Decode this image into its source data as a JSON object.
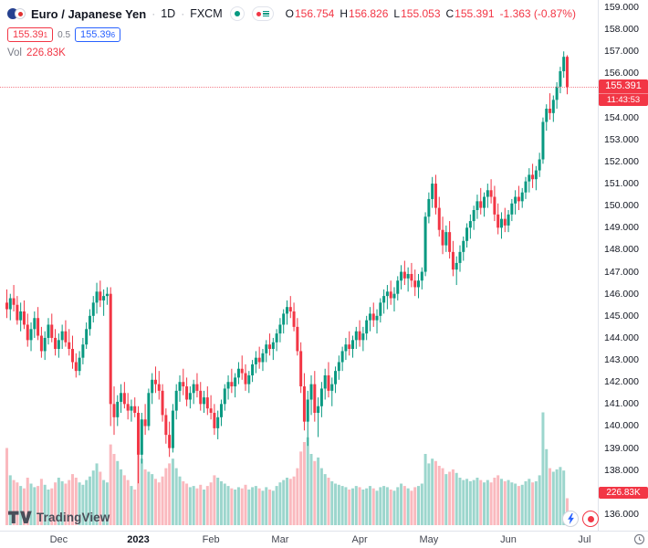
{
  "header": {
    "symbol_title": "Euro / Japanese Yen",
    "separator": "·",
    "interval": "1D",
    "exchange": "FXCM",
    "ohlc": {
      "o_label": "O",
      "o_value": "156.754",
      "h_label": "H",
      "h_value": "156.826",
      "l_label": "L",
      "l_value": "155.053",
      "c_label": "C",
      "c_value": "155.391",
      "change": "-1.363 (-0.87%)"
    },
    "sell": {
      "price": "155.39",
      "sup": "1"
    },
    "spread": "0.5",
    "buy": {
      "price": "155.39",
      "sup": "6"
    },
    "vol_label": "Vol",
    "vol_value": "226.83K"
  },
  "price_axis": {
    "labels": [
      "159.000",
      "158.000",
      "157.000",
      "156.000",
      "155.000",
      "154.000",
      "153.000",
      "152.000",
      "151.000",
      "150.000",
      "149.000",
      "148.000",
      "147.000",
      "146.000",
      "145.000",
      "144.000",
      "143.000",
      "142.000",
      "141.000",
      "140.000",
      "139.000",
      "138.000",
      "137.000",
      "136.000"
    ],
    "current_price_label": "155.391",
    "countdown": "11:43:53",
    "volume_label": "226.83K"
  },
  "time_axis": {
    "ticks": [
      {
        "label": "Dec",
        "index": 15
      },
      {
        "label": "2023",
        "index": 38
      },
      {
        "label": "Feb",
        "index": 59
      },
      {
        "label": "Mar",
        "index": 79
      },
      {
        "label": "Apr",
        "index": 102
      },
      {
        "label": "May",
        "index": 122
      },
      {
        "label": "Jun",
        "index": 145
      },
      {
        "label": "Jul",
        "index": 167
      }
    ]
  },
  "footer": {
    "logo_text": "TradingView"
  },
  "chart_data": {
    "type": "candlestick",
    "title": "Euro / Japanese Yen",
    "exchange": "FXCM",
    "interval": "1D",
    "legend_note": "values are [open, high, low, close, volume_thousands], daily bars from mid-Nov 2022 to late Jun 2023",
    "y_axis": {
      "min": 136,
      "max": 159,
      "step": 1
    },
    "current": {
      "open": 156.754,
      "high": 156.826,
      "low": 155.053,
      "close": 155.391,
      "change": -1.363,
      "change_pct": -0.87,
      "volume_k": 226.83,
      "countdown": "11:43:53"
    },
    "colors": {
      "up": "#089981",
      "down": "#f23645",
      "vol_up": "rgba(8,153,129,0.4)",
      "vol_down": "rgba(242,54,69,0.35)",
      "buy": "#2962ff",
      "marker_bg": "#f23645"
    },
    "candles": [
      [
        145.6,
        146.2,
        144.9,
        145.3,
        650
      ],
      [
        145.3,
        146.0,
        144.8,
        145.8,
        420
      ],
      [
        145.8,
        146.4,
        145.2,
        145.5,
        380
      ],
      [
        145.5,
        145.9,
        144.6,
        144.8,
        360
      ],
      [
        144.8,
        145.6,
        144.3,
        145.2,
        330
      ],
      [
        145.2,
        145.7,
        144.4,
        144.6,
        310
      ],
      [
        144.6,
        145.1,
        143.6,
        143.9,
        400
      ],
      [
        143.9,
        144.7,
        143.4,
        144.4,
        350
      ],
      [
        144.4,
        145.2,
        144.0,
        144.9,
        320
      ],
      [
        144.9,
        145.4,
        143.9,
        144.1,
        330
      ],
      [
        144.1,
        144.5,
        143.1,
        143.4,
        390
      ],
      [
        143.4,
        144.3,
        143.0,
        144.0,
        340
      ],
      [
        144.0,
        144.9,
        143.7,
        144.6,
        300
      ],
      [
        144.6,
        145.1,
        143.8,
        144.0,
        310
      ],
      [
        144.0,
        144.4,
        143.2,
        143.5,
        360
      ],
      [
        143.5,
        144.2,
        143.1,
        143.9,
        400
      ],
      [
        143.9,
        144.6,
        143.5,
        144.3,
        370
      ],
      [
        144.3,
        144.8,
        143.6,
        143.8,
        350
      ],
      [
        143.8,
        144.4,
        143.2,
        143.5,
        380
      ],
      [
        143.5,
        144.1,
        142.6,
        142.9,
        430
      ],
      [
        142.9,
        143.3,
        142.2,
        142.5,
        400
      ],
      [
        142.5,
        143.4,
        142.3,
        143.1,
        360
      ],
      [
        143.1,
        144.0,
        142.8,
        143.7,
        340
      ],
      [
        143.7,
        144.7,
        143.5,
        144.4,
        380
      ],
      [
        144.4,
        145.3,
        144.1,
        145.0,
        410
      ],
      [
        145.0,
        145.9,
        144.7,
        145.6,
        460
      ],
      [
        145.6,
        146.5,
        145.1,
        146.1,
        520
      ],
      [
        146.1,
        146.6,
        145.4,
        145.7,
        450
      ],
      [
        145.7,
        146.2,
        145.0,
        145.9,
        380
      ],
      [
        145.9,
        146.3,
        145.5,
        146.0,
        360
      ],
      [
        146.0,
        146.3,
        140.0,
        141.0,
        680
      ],
      [
        141.0,
        141.8,
        139.6,
        140.4,
        600
      ],
      [
        140.4,
        141.4,
        140.0,
        141.1,
        540
      ],
      [
        141.1,
        141.9,
        140.6,
        141.5,
        470
      ],
      [
        141.5,
        142.0,
        140.8,
        141.0,
        420
      ],
      [
        141.0,
        141.5,
        140.3,
        140.7,
        380
      ],
      [
        140.7,
        141.2,
        140.2,
        140.9,
        330
      ],
      [
        140.9,
        141.3,
        140.4,
        140.6,
        300
      ],
      [
        140.6,
        140.9,
        137.4,
        138.7,
        700
      ],
      [
        138.7,
        140.6,
        138.3,
        140.3,
        560
      ],
      [
        140.3,
        141.0,
        139.6,
        140.0,
        470
      ],
      [
        140.0,
        141.7,
        139.8,
        141.5,
        450
      ],
      [
        141.5,
        142.4,
        141.0,
        142.1,
        430
      ],
      [
        142.1,
        142.7,
        141.5,
        141.9,
        390
      ],
      [
        141.9,
        142.5,
        141.2,
        141.6,
        360
      ],
      [
        141.6,
        141.9,
        140.2,
        140.5,
        410
      ],
      [
        140.5,
        140.8,
        139.2,
        139.6,
        480
      ],
      [
        139.6,
        140.2,
        138.6,
        139.0,
        520
      ],
      [
        139.0,
        141.0,
        138.8,
        140.7,
        560
      ],
      [
        140.7,
        141.9,
        140.3,
        141.6,
        480
      ],
      [
        141.6,
        142.3,
        141.1,
        142.0,
        410
      ],
      [
        142.0,
        142.6,
        141.4,
        141.8,
        370
      ],
      [
        141.8,
        142.2,
        140.9,
        141.2,
        350
      ],
      [
        141.2,
        141.8,
        140.8,
        141.5,
        320
      ],
      [
        141.5,
        142.1,
        141.0,
        141.9,
        330
      ],
      [
        141.9,
        142.4,
        141.3,
        141.6,
        310
      ],
      [
        141.6,
        142.0,
        140.7,
        141.0,
        340
      ],
      [
        141.0,
        141.6,
        140.6,
        141.3,
        300
      ],
      [
        141.3,
        141.8,
        140.5,
        140.8,
        330
      ],
      [
        140.8,
        141.4,
        140.3,
        140.6,
        360
      ],
      [
        140.6,
        141.0,
        139.6,
        139.9,
        420
      ],
      [
        139.9,
        140.7,
        139.4,
        140.4,
        400
      ],
      [
        140.4,
        141.2,
        140.0,
        141.0,
        370
      ],
      [
        141.0,
        141.9,
        140.7,
        141.7,
        350
      ],
      [
        141.7,
        142.3,
        141.2,
        142.0,
        330
      ],
      [
        142.0,
        142.6,
        141.5,
        141.8,
        310
      ],
      [
        141.8,
        142.4,
        141.3,
        142.2,
        300
      ],
      [
        142.2,
        142.9,
        141.9,
        142.6,
        320
      ],
      [
        142.6,
        143.2,
        142.1,
        142.4,
        310
      ],
      [
        142.4,
        142.8,
        141.6,
        141.9,
        340
      ],
      [
        141.9,
        142.5,
        141.5,
        142.3,
        300
      ],
      [
        142.3,
        143.0,
        142.0,
        142.8,
        320
      ],
      [
        142.8,
        143.4,
        142.4,
        143.1,
        330
      ],
      [
        143.1,
        143.6,
        142.6,
        142.9,
        310
      ],
      [
        142.9,
        143.5,
        142.5,
        143.3,
        290
      ],
      [
        143.3,
        143.9,
        142.9,
        143.7,
        320
      ],
      [
        143.7,
        144.2,
        143.2,
        143.5,
        300
      ],
      [
        143.5,
        144.0,
        143.0,
        143.8,
        290
      ],
      [
        143.8,
        144.4,
        143.4,
        144.2,
        330
      ],
      [
        144.2,
        144.9,
        143.8,
        144.6,
        360
      ],
      [
        144.6,
        145.3,
        144.2,
        145.1,
        380
      ],
      [
        145.1,
        145.7,
        144.6,
        145.4,
        400
      ],
      [
        145.4,
        145.9,
        144.9,
        145.2,
        390
      ],
      [
        145.2,
        145.6,
        144.3,
        144.5,
        410
      ],
      [
        144.5,
        144.9,
        143.2,
        143.4,
        480
      ],
      [
        143.4,
        143.8,
        141.5,
        141.8,
        620
      ],
      [
        141.8,
        142.4,
        139.8,
        140.2,
        700
      ],
      [
        140.2,
        141.6,
        139.1,
        141.2,
        740
      ],
      [
        141.2,
        142.3,
        140.5,
        141.9,
        600
      ],
      [
        141.9,
        142.5,
        140.2,
        140.6,
        540
      ],
      [
        140.6,
        141.3,
        139.5,
        140.9,
        570
      ],
      [
        140.9,
        142.0,
        140.4,
        141.7,
        480
      ],
      [
        141.7,
        142.6,
        141.2,
        142.3,
        430
      ],
      [
        142.3,
        142.9,
        141.3,
        141.6,
        400
      ],
      [
        141.6,
        142.2,
        140.9,
        141.9,
        370
      ],
      [
        141.9,
        142.7,
        141.5,
        142.5,
        350
      ],
      [
        142.5,
        143.2,
        142.1,
        142.9,
        340
      ],
      [
        142.9,
        143.6,
        142.5,
        143.4,
        330
      ],
      [
        143.4,
        144.0,
        143.0,
        143.7,
        320
      ],
      [
        143.7,
        144.3,
        143.2,
        143.5,
        300
      ],
      [
        143.5,
        144.1,
        143.1,
        143.9,
        310
      ],
      [
        143.9,
        144.5,
        143.5,
        144.3,
        330
      ],
      [
        144.3,
        144.8,
        143.6,
        143.9,
        320
      ],
      [
        143.9,
        144.5,
        143.4,
        144.2,
        300
      ],
      [
        144.2,
        145.0,
        143.9,
        144.8,
        310
      ],
      [
        144.8,
        145.4,
        144.3,
        145.1,
        330
      ],
      [
        145.1,
        145.6,
        144.5,
        144.8,
        310
      ],
      [
        144.8,
        145.3,
        144.2,
        145.0,
        290
      ],
      [
        145.0,
        145.8,
        144.7,
        145.6,
        320
      ],
      [
        145.6,
        146.2,
        145.1,
        145.9,
        330
      ],
      [
        145.9,
        146.4,
        145.3,
        146.1,
        320
      ],
      [
        146.1,
        146.6,
        145.5,
        145.8,
        300
      ],
      [
        145.8,
        146.3,
        145.2,
        146.0,
        290
      ],
      [
        146.0,
        146.8,
        145.7,
        146.6,
        320
      ],
      [
        146.6,
        147.3,
        146.2,
        147.0,
        350
      ],
      [
        147.0,
        147.5,
        146.4,
        146.7,
        330
      ],
      [
        146.7,
        147.2,
        146.1,
        146.9,
        310
      ],
      [
        146.9,
        147.4,
        146.3,
        146.6,
        290
      ],
      [
        146.6,
        147.1,
        145.9,
        146.3,
        320
      ],
      [
        146.3,
        146.9,
        145.8,
        146.6,
        330
      ],
      [
        146.6,
        147.2,
        146.2,
        147.0,
        350
      ],
      [
        147.0,
        149.7,
        146.8,
        149.5,
        600
      ],
      [
        149.5,
        150.6,
        149.2,
        150.3,
        520
      ],
      [
        150.3,
        151.3,
        149.9,
        151.0,
        560
      ],
      [
        151.0,
        151.4,
        149.6,
        149.9,
        540
      ],
      [
        149.9,
        150.4,
        148.6,
        148.9,
        500
      ],
      [
        148.9,
        149.5,
        147.8,
        148.2,
        480
      ],
      [
        148.2,
        149.1,
        147.9,
        148.8,
        430
      ],
      [
        148.8,
        149.3,
        147.6,
        147.9,
        450
      ],
      [
        147.9,
        148.4,
        146.8,
        147.1,
        470
      ],
      [
        147.1,
        147.7,
        146.4,
        147.4,
        440
      ],
      [
        147.4,
        148.2,
        147.0,
        147.9,
        400
      ],
      [
        147.9,
        148.6,
        147.5,
        148.4,
        380
      ],
      [
        148.4,
        149.2,
        148.1,
        149.0,
        390
      ],
      [
        149.0,
        149.6,
        148.5,
        149.3,
        370
      ],
      [
        149.3,
        150.0,
        148.9,
        149.8,
        380
      ],
      [
        149.8,
        150.5,
        149.4,
        150.2,
        400
      ],
      [
        150.2,
        150.8,
        149.6,
        149.9,
        380
      ],
      [
        149.9,
        150.6,
        149.5,
        150.4,
        360
      ],
      [
        150.4,
        151.0,
        149.9,
        150.7,
        380
      ],
      [
        150.7,
        151.2,
        150.1,
        150.4,
        360
      ],
      [
        150.4,
        150.9,
        149.3,
        149.6,
        400
      ],
      [
        149.6,
        150.1,
        148.7,
        149.0,
        420
      ],
      [
        149.0,
        149.7,
        148.5,
        149.4,
        390
      ],
      [
        149.4,
        149.9,
        148.8,
        149.1,
        370
      ],
      [
        149.1,
        149.8,
        148.8,
        149.6,
        380
      ],
      [
        149.6,
        150.3,
        149.3,
        150.1,
        360
      ],
      [
        150.1,
        150.7,
        149.6,
        150.4,
        350
      ],
      [
        150.4,
        150.9,
        149.8,
        150.2,
        330
      ],
      [
        150.2,
        150.8,
        149.9,
        150.6,
        340
      ],
      [
        150.6,
        151.3,
        150.3,
        151.1,
        370
      ],
      [
        151.1,
        151.7,
        150.6,
        151.4,
        390
      ],
      [
        151.4,
        151.9,
        150.8,
        151.2,
        360
      ],
      [
        151.2,
        151.8,
        150.7,
        151.6,
        370
      ],
      [
        151.6,
        152.4,
        151.3,
        152.1,
        420
      ],
      [
        152.1,
        154.0,
        151.9,
        153.8,
        950
      ],
      [
        153.8,
        154.6,
        153.4,
        154.4,
        640
      ],
      [
        154.4,
        155.1,
        153.9,
        154.2,
        480
      ],
      [
        154.2,
        155.0,
        153.8,
        154.8,
        450
      ],
      [
        154.8,
        155.6,
        154.4,
        155.4,
        470
      ],
      [
        155.4,
        156.3,
        155.1,
        156.1,
        490
      ],
      [
        156.1,
        157.0,
        155.8,
        156.754,
        460
      ],
      [
        156.754,
        156.826,
        155.053,
        155.391,
        226.83
      ]
    ]
  }
}
